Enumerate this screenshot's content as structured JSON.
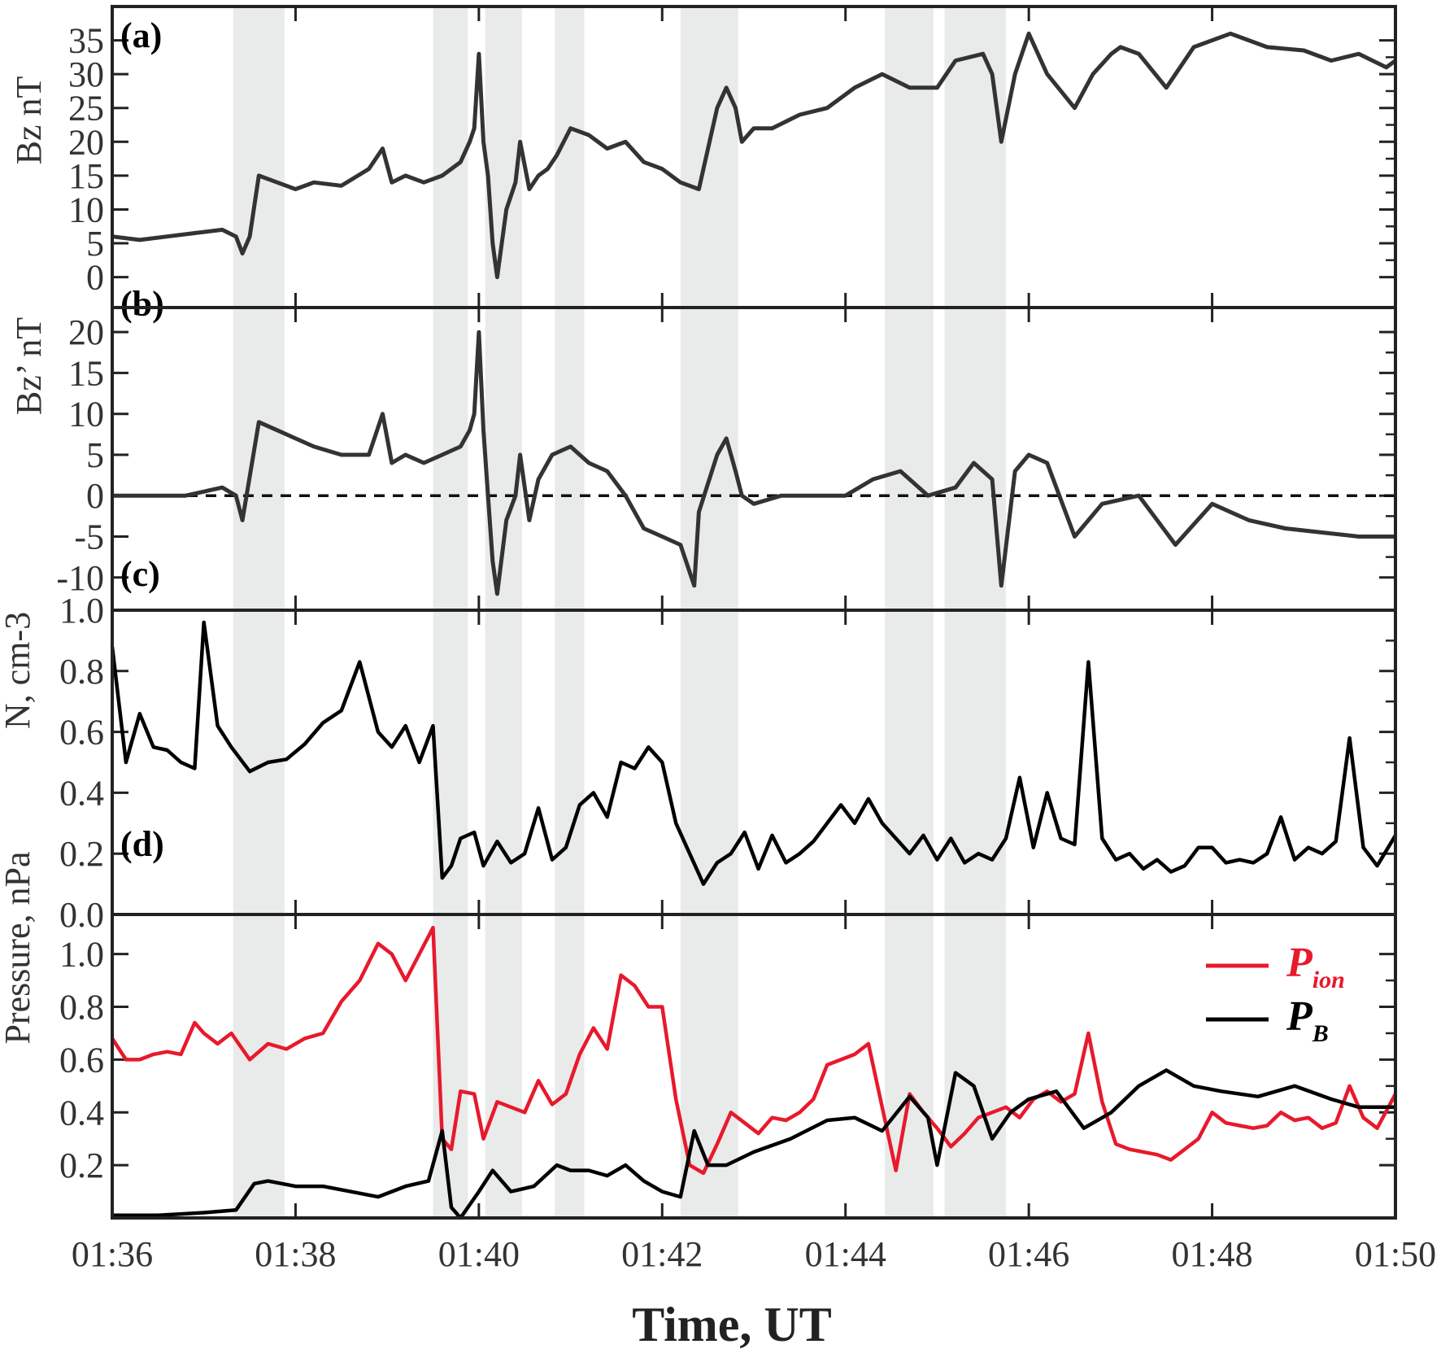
{
  "chart_data": [
    {
      "id": "a",
      "type": "line",
      "panel_label": "(a)",
      "ylabel": "Bz nT",
      "ylim": [
        -4.5,
        40
      ],
      "yticks": [
        0,
        5,
        10,
        15,
        20,
        25,
        30,
        35
      ],
      "ytick_labels": [
        "0",
        "5",
        "10",
        "15",
        "20",
        "25",
        "30",
        "35"
      ],
      "colors": {
        "line": "#333333"
      },
      "series": [
        {
          "name": "Bz",
          "x": [
            0,
            0.3,
            0.6,
            0.9,
            1.2,
            1.35,
            1.42,
            1.5,
            1.6,
            1.8,
            2.0,
            2.2,
            2.5,
            2.8,
            2.95,
            3.05,
            3.2,
            3.4,
            3.6,
            3.8,
            3.9,
            3.95,
            4.0,
            4.05,
            4.1,
            4.15,
            4.2,
            4.3,
            4.4,
            4.45,
            4.55,
            4.65,
            4.75,
            4.85,
            5.0,
            5.2,
            5.4,
            5.6,
            5.8,
            6.0,
            6.2,
            6.4,
            6.6,
            6.7,
            6.8,
            6.87,
            7.0,
            7.2,
            7.5,
            7.8,
            8.1,
            8.4,
            8.7,
            9.0,
            9.2,
            9.5,
            9.6,
            9.7,
            9.85,
            10.0,
            10.2,
            10.5,
            10.7,
            10.9,
            11.0,
            11.2,
            11.5,
            11.8,
            12.2,
            12.6,
            13.0,
            13.3,
            13.6,
            13.9,
            14.0
          ],
          "values": [
            6,
            5.5,
            6,
            6.5,
            7,
            6,
            3.5,
            6,
            15,
            14,
            13,
            14,
            13.5,
            16,
            19,
            14,
            15,
            14,
            15,
            17,
            20,
            22,
            33,
            20,
            15,
            5,
            0,
            10,
            14,
            20,
            13,
            15,
            16,
            18,
            22,
            21,
            19,
            20,
            17,
            16,
            14,
            13,
            25,
            28,
            25,
            20,
            22,
            22,
            24,
            25,
            28,
            30,
            28,
            28,
            32,
            33,
            30,
            20,
            30,
            36,
            30,
            25,
            30,
            33,
            34,
            33,
            28,
            34,
            36,
            34,
            33.5,
            32,
            33,
            31,
            32
          ]
        }
      ]
    },
    {
      "id": "b",
      "type": "line",
      "panel_label": "(b)",
      "ylabel": "Bz’ nT",
      "ylim": [
        -14,
        23
      ],
      "yticks": [
        -10,
        -5,
        0,
        5,
        10,
        15,
        20
      ],
      "ytick_labels": [
        "-10",
        "-5",
        "0",
        "5",
        "10",
        "15",
        "20"
      ],
      "reference_line": 0,
      "colors": {
        "line": "#333333",
        "reference": "#111111"
      },
      "series": [
        {
          "name": "Bz'",
          "x": [
            0,
            0.4,
            0.8,
            1.2,
            1.35,
            1.42,
            1.6,
            1.8,
            2.0,
            2.2,
            2.5,
            2.8,
            2.95,
            3.05,
            3.2,
            3.4,
            3.6,
            3.8,
            3.9,
            3.95,
            4.0,
            4.05,
            4.1,
            4.15,
            4.2,
            4.3,
            4.4,
            4.45,
            4.55,
            4.65,
            4.8,
            5.0,
            5.2,
            5.4,
            5.6,
            5.8,
            6.0,
            6.2,
            6.35,
            6.4,
            6.6,
            6.7,
            6.8,
            6.87,
            7.0,
            7.3,
            7.6,
            8.0,
            8.3,
            8.6,
            8.9,
            9.2,
            9.4,
            9.6,
            9.7,
            9.85,
            10.0,
            10.2,
            10.5,
            10.8,
            11.2,
            11.6,
            12.0,
            12.4,
            12.8,
            13.2,
            13.6,
            14.0
          ],
          "values": [
            0,
            0,
            0,
            1,
            0,
            -3,
            9,
            8,
            7,
            6,
            5,
            5,
            10,
            4,
            5,
            4,
            5,
            6,
            8,
            10,
            20,
            8,
            0,
            -8,
            -12,
            -3,
            0,
            5,
            -3,
            2,
            5,
            6,
            4,
            3,
            0,
            -4,
            -5,
            -6,
            -11,
            -2,
            5,
            7,
            3,
            0,
            -1,
            0,
            0,
            0,
            2,
            3,
            0,
            1,
            4,
            2,
            -11,
            3,
            5,
            4,
            -5,
            -1,
            0,
            -6,
            -1,
            -3,
            -4,
            -4.5,
            -5,
            -5
          ]
        }
      ]
    },
    {
      "id": "c",
      "type": "line",
      "panel_label": "(c)",
      "ylabel": "N, cm-3",
      "ylim": [
        0,
        1.0
      ],
      "yticks": [
        0,
        0.2,
        0.4,
        0.6,
        0.8,
        1.0
      ],
      "ytick_labels": [
        "0.0",
        "0.2",
        "0.4",
        "0.6",
        "0.8",
        "1.0"
      ],
      "colors": {
        "line": "#000000"
      },
      "series": [
        {
          "name": "N",
          "x": [
            0,
            0.15,
            0.3,
            0.45,
            0.6,
            0.75,
            0.9,
            1.0,
            1.15,
            1.3,
            1.5,
            1.7,
            1.9,
            2.1,
            2.3,
            2.5,
            2.7,
            2.9,
            3.05,
            3.2,
            3.35,
            3.5,
            3.6,
            3.7,
            3.8,
            3.95,
            4.05,
            4.2,
            4.35,
            4.5,
            4.65,
            4.8,
            4.95,
            5.1,
            5.25,
            5.4,
            5.55,
            5.7,
            5.85,
            6.0,
            6.15,
            6.3,
            6.45,
            6.6,
            6.75,
            6.9,
            7.05,
            7.2,
            7.35,
            7.5,
            7.65,
            7.8,
            7.95,
            8.1,
            8.25,
            8.4,
            8.55,
            8.7,
            8.85,
            9.0,
            9.15,
            9.3,
            9.45,
            9.6,
            9.75,
            9.9,
            10.05,
            10.2,
            10.35,
            10.5,
            10.65,
            10.8,
            10.95,
            11.1,
            11.25,
            11.4,
            11.55,
            11.7,
            11.85,
            12.0,
            12.15,
            12.3,
            12.45,
            12.6,
            12.75,
            12.9,
            13.05,
            13.2,
            13.35,
            13.5,
            13.65,
            13.8,
            14.0
          ],
          "values": [
            0.88,
            0.5,
            0.66,
            0.55,
            0.54,
            0.5,
            0.48,
            0.96,
            0.62,
            0.55,
            0.47,
            0.5,
            0.51,
            0.56,
            0.63,
            0.67,
            0.83,
            0.6,
            0.55,
            0.62,
            0.5,
            0.62,
            0.12,
            0.16,
            0.25,
            0.27,
            0.16,
            0.24,
            0.17,
            0.2,
            0.35,
            0.18,
            0.22,
            0.36,
            0.4,
            0.32,
            0.5,
            0.48,
            0.55,
            0.5,
            0.3,
            0.2,
            0.1,
            0.17,
            0.2,
            0.27,
            0.15,
            0.26,
            0.17,
            0.2,
            0.24,
            0.3,
            0.36,
            0.3,
            0.38,
            0.3,
            0.25,
            0.2,
            0.26,
            0.18,
            0.25,
            0.17,
            0.2,
            0.18,
            0.25,
            0.45,
            0.22,
            0.4,
            0.25,
            0.23,
            0.83,
            0.25,
            0.18,
            0.2,
            0.15,
            0.18,
            0.14,
            0.16,
            0.22,
            0.22,
            0.17,
            0.18,
            0.17,
            0.2,
            0.32,
            0.18,
            0.22,
            0.2,
            0.24,
            0.58,
            0.22,
            0.16,
            0.26
          ]
        }
      ]
    },
    {
      "id": "d",
      "type": "line",
      "panel_label": "(d)",
      "ylabel": "Pressure, nPa",
      "ylim": [
        0,
        1.15
      ],
      "yticks": [
        0.2,
        0.4,
        0.6,
        0.8,
        1.0
      ],
      "ytick_labels": [
        "0.2",
        "0.4",
        "0.6",
        "0.8",
        "1.0"
      ],
      "legend_position": "top-right",
      "colors": {
        "P_ion": "#e8192c",
        "P_B": "#000000"
      },
      "series": [
        {
          "name": "P_ion",
          "legend_main": "P",
          "legend_sub": "ion",
          "color": "#e8192c",
          "x": [
            0,
            0.15,
            0.3,
            0.45,
            0.6,
            0.75,
            0.9,
            1.0,
            1.15,
            1.3,
            1.5,
            1.7,
            1.9,
            2.1,
            2.3,
            2.5,
            2.7,
            2.9,
            3.05,
            3.2,
            3.35,
            3.5,
            3.6,
            3.7,
            3.8,
            3.95,
            4.05,
            4.2,
            4.35,
            4.5,
            4.65,
            4.8,
            4.95,
            5.1,
            5.25,
            5.4,
            5.55,
            5.7,
            5.85,
            6.0,
            6.15,
            6.3,
            6.45,
            6.6,
            6.75,
            6.9,
            7.05,
            7.2,
            7.35,
            7.5,
            7.65,
            7.8,
            7.95,
            8.1,
            8.25,
            8.4,
            8.55,
            8.7,
            8.85,
            9.0,
            9.15,
            9.3,
            9.45,
            9.6,
            9.75,
            9.9,
            10.05,
            10.2,
            10.35,
            10.5,
            10.65,
            10.8,
            10.95,
            11.1,
            11.25,
            11.4,
            11.55,
            11.7,
            11.85,
            12.0,
            12.15,
            12.3,
            12.45,
            12.6,
            12.75,
            12.9,
            13.05,
            13.2,
            13.35,
            13.5,
            13.65,
            13.8,
            14.0
          ],
          "values": [
            0.68,
            0.6,
            0.6,
            0.62,
            0.63,
            0.62,
            0.74,
            0.7,
            0.66,
            0.7,
            0.6,
            0.66,
            0.64,
            0.68,
            0.7,
            0.82,
            0.9,
            1.04,
            1.0,
            0.9,
            1.0,
            1.1,
            0.3,
            0.26,
            0.48,
            0.47,
            0.3,
            0.44,
            0.42,
            0.4,
            0.52,
            0.43,
            0.47,
            0.62,
            0.72,
            0.64,
            0.92,
            0.88,
            0.8,
            0.8,
            0.45,
            0.2,
            0.17,
            0.28,
            0.4,
            0.36,
            0.32,
            0.38,
            0.37,
            0.4,
            0.45,
            0.58,
            0.6,
            0.62,
            0.66,
            0.42,
            0.18,
            0.47,
            0.4,
            0.34,
            0.27,
            0.32,
            0.38,
            0.4,
            0.42,
            0.38,
            0.45,
            0.48,
            0.44,
            0.47,
            0.7,
            0.44,
            0.28,
            0.26,
            0.25,
            0.24,
            0.22,
            0.26,
            0.3,
            0.4,
            0.36,
            0.35,
            0.34,
            0.35,
            0.4,
            0.37,
            0.38,
            0.34,
            0.36,
            0.5,
            0.38,
            0.34,
            0.47
          ]
        },
        {
          "name": "P_B",
          "legend_main": "P",
          "legend_sub": "B",
          "color": "#000000",
          "x": [
            0,
            0.5,
            1.0,
            1.35,
            1.55,
            1.7,
            2.0,
            2.3,
            2.6,
            2.9,
            3.2,
            3.45,
            3.6,
            3.7,
            3.8,
            4.0,
            4.15,
            4.35,
            4.6,
            4.85,
            5.0,
            5.2,
            5.4,
            5.6,
            5.8,
            6.0,
            6.2,
            6.35,
            6.5,
            6.7,
            7.0,
            7.4,
            7.8,
            8.1,
            8.4,
            8.7,
            8.9,
            9.0,
            9.2,
            9.4,
            9.6,
            9.7,
            9.8,
            10.0,
            10.3,
            10.6,
            10.9,
            11.2,
            11.5,
            11.8,
            12.1,
            12.5,
            12.9,
            13.3,
            13.6,
            14.0
          ],
          "values": [
            0.01,
            0.01,
            0.02,
            0.03,
            0.13,
            0.14,
            0.12,
            0.12,
            0.1,
            0.08,
            0.12,
            0.14,
            0.33,
            0.04,
            0.0,
            0.1,
            0.18,
            0.1,
            0.12,
            0.2,
            0.18,
            0.18,
            0.16,
            0.2,
            0.14,
            0.1,
            0.08,
            0.33,
            0.2,
            0.2,
            0.25,
            0.3,
            0.37,
            0.38,
            0.33,
            0.46,
            0.38,
            0.2,
            0.55,
            0.5,
            0.3,
            0.35,
            0.4,
            0.45,
            0.48,
            0.34,
            0.4,
            0.5,
            0.56,
            0.5,
            0.48,
            0.46,
            0.5,
            0.45,
            0.42,
            0.42
          ]
        }
      ]
    }
  ],
  "shaded_intervals": [
    [
      1.32,
      1.88
    ],
    [
      3.5,
      3.88
    ],
    [
      4.07,
      4.47
    ],
    [
      4.83,
      5.15
    ],
    [
      6.2,
      6.83
    ],
    [
      8.43,
      8.96
    ],
    [
      9.08,
      9.75
    ]
  ],
  "shade_color": "#e9eaea",
  "x_axis": {
    "xlabel": "Time, UT",
    "xlim": [
      0,
      14
    ],
    "ticks": [
      0,
      2,
      4,
      6,
      8,
      10,
      12,
      14
    ],
    "tick_labels": [
      "01:36",
      "01:38",
      "01:40",
      "01:42",
      "01:44",
      "01:46",
      "01:48",
      "01:50"
    ]
  }
}
